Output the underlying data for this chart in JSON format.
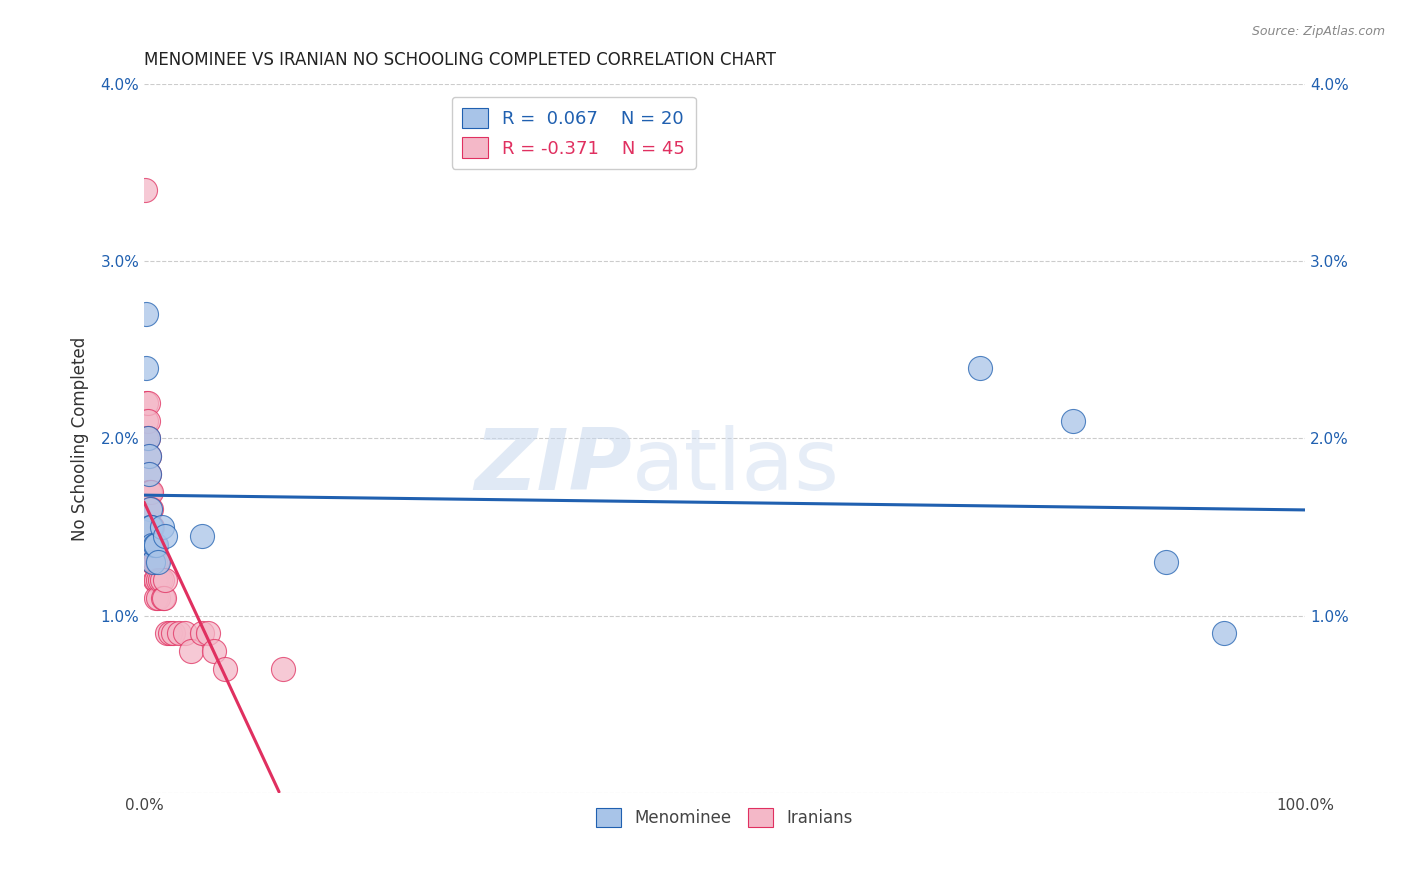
{
  "title": "MENOMINEE VS IRANIAN NO SCHOOLING COMPLETED CORRELATION CHART",
  "source": "Source: ZipAtlas.com",
  "ylabel": "No Schooling Completed",
  "xlim": [
    0,
    1.0
  ],
  "ylim": [
    0,
    0.04
  ],
  "menominee_color": "#a8c4e8",
  "iranian_color": "#f4b8c8",
  "menominee_line_color": "#2060b0",
  "iranian_line_color": "#e03060",
  "legend_R_menominee": "0.067",
  "legend_N_menominee": "20",
  "legend_R_iranian": "-0.371",
  "legend_N_iranian": "45",
  "watermark_zip": "ZIP",
  "watermark_atlas": "atlas",
  "menominee_x": [
    0.002,
    0.002,
    0.003,
    0.004,
    0.004,
    0.005,
    0.005,
    0.006,
    0.007,
    0.008,
    0.009,
    0.01,
    0.012,
    0.015,
    0.018,
    0.05,
    0.72,
    0.8,
    0.88,
    0.93
  ],
  "menominee_y": [
    0.027,
    0.024,
    0.02,
    0.019,
    0.018,
    0.016,
    0.015,
    0.015,
    0.014,
    0.013,
    0.014,
    0.014,
    0.013,
    0.015,
    0.0145,
    0.0145,
    0.024,
    0.021,
    0.013,
    0.009
  ],
  "iranian_x": [
    0.001,
    0.002,
    0.002,
    0.002,
    0.003,
    0.003,
    0.003,
    0.004,
    0.004,
    0.004,
    0.005,
    0.005,
    0.005,
    0.005,
    0.006,
    0.006,
    0.006,
    0.007,
    0.007,
    0.007,
    0.008,
    0.008,
    0.009,
    0.009,
    0.01,
    0.01,
    0.011,
    0.012,
    0.012,
    0.014,
    0.015,
    0.016,
    0.017,
    0.018,
    0.02,
    0.022,
    0.025,
    0.03,
    0.035,
    0.04,
    0.05,
    0.055,
    0.06,
    0.07,
    0.12
  ],
  "iranian_y": [
    0.034,
    0.022,
    0.021,
    0.02,
    0.022,
    0.021,
    0.02,
    0.019,
    0.018,
    0.017,
    0.017,
    0.016,
    0.015,
    0.014,
    0.017,
    0.016,
    0.015,
    0.015,
    0.014,
    0.013,
    0.014,
    0.013,
    0.013,
    0.012,
    0.012,
    0.011,
    0.013,
    0.012,
    0.011,
    0.012,
    0.012,
    0.011,
    0.011,
    0.012,
    0.009,
    0.009,
    0.009,
    0.009,
    0.009,
    0.008,
    0.009,
    0.009,
    0.008,
    0.007,
    0.007
  ]
}
